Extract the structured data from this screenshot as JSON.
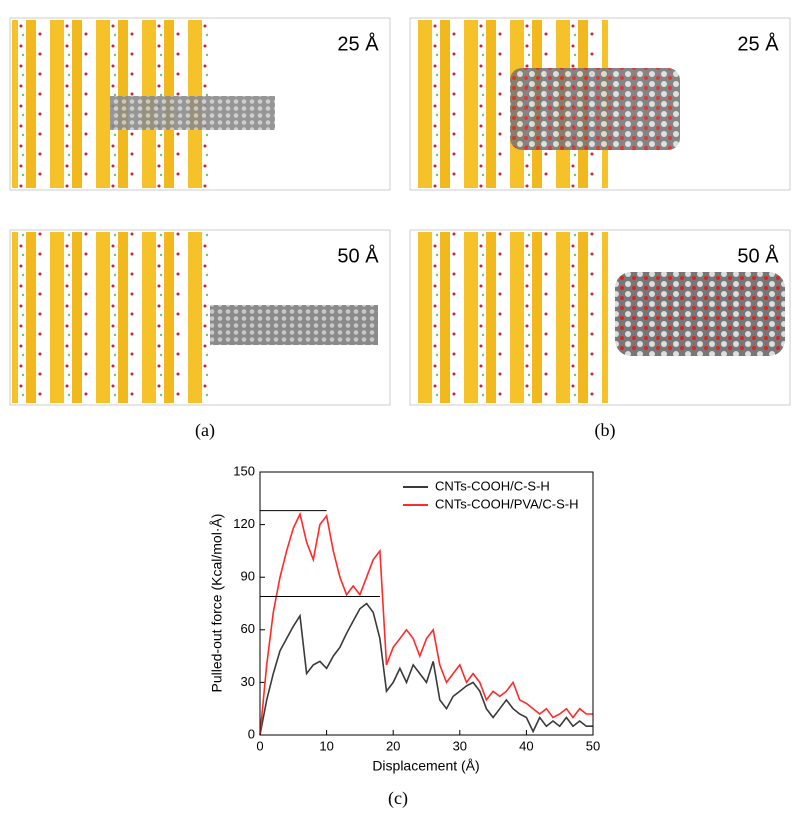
{
  "panels": [
    {
      "caption": "(a)",
      "frames": [
        "25 Å",
        "50 Å"
      ]
    },
    {
      "caption": "(b)",
      "frames": [
        "25 Å",
        "50 Å"
      ]
    }
  ],
  "chart_caption": "(c)",
  "chart_data": {
    "type": "line",
    "x_label": "Displacement (Å)",
    "y_label": "Pulled-out force (Kcal/mol·Å)",
    "x": [
      0,
      1,
      2,
      3,
      4,
      5,
      6,
      7,
      8,
      9,
      10,
      11,
      12,
      13,
      14,
      15,
      16,
      17,
      18,
      19,
      20,
      21,
      22,
      23,
      24,
      25,
      26,
      27,
      28,
      29,
      30,
      31,
      32,
      33,
      34,
      35,
      36,
      37,
      38,
      39,
      40,
      41,
      42,
      43,
      44,
      45,
      46,
      47,
      48,
      49,
      50
    ],
    "series": [
      {
        "name": "CNTs-COOH/C-S-H",
        "color": "#3a3a3a",
        "values": [
          0,
          20,
          35,
          48,
          55,
          62,
          68,
          35,
          40,
          42,
          38,
          45,
          50,
          58,
          65,
          72,
          75,
          70,
          55,
          25,
          30,
          38,
          30,
          40,
          35,
          30,
          42,
          20,
          15,
          22,
          25,
          28,
          30,
          25,
          15,
          10,
          15,
          20,
          15,
          12,
          10,
          2,
          10,
          5,
          8,
          5,
          10,
          5,
          8,
          5,
          5
        ]
      },
      {
        "name": "CNTs-COOH/PVA/C-S-H",
        "color": "#ff2a2a",
        "values": [
          0,
          40,
          70,
          90,
          105,
          118,
          126,
          110,
          100,
          120,
          125,
          105,
          90,
          80,
          85,
          80,
          90,
          100,
          105,
          40,
          50,
          55,
          60,
          55,
          45,
          55,
          60,
          40,
          30,
          35,
          40,
          30,
          35,
          30,
          20,
          25,
          22,
          25,
          30,
          20,
          18,
          15,
          12,
          15,
          10,
          12,
          15,
          10,
          15,
          12,
          12
        ]
      }
    ],
    "reference_lines": [
      {
        "y": 128,
        "x_end": 10
      },
      {
        "y": 79,
        "x_end": 18
      }
    ],
    "xlim": [
      0,
      50
    ],
    "xticks": [
      0,
      10,
      20,
      30,
      40,
      50
    ],
    "ylim": [
      0,
      150
    ],
    "yticks": [
      0,
      30,
      60,
      90,
      120,
      150
    ],
    "legend": "upper right"
  }
}
